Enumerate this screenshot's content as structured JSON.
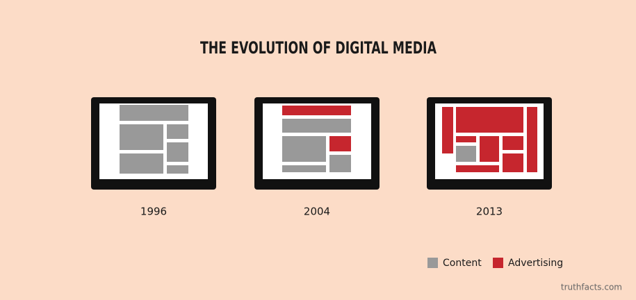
{
  "title": "THE EVOLUTION OF DIGITAL MEDIA",
  "panels": [
    {
      "label": "1996"
    },
    {
      "label": "2004"
    },
    {
      "label": "2013"
    }
  ],
  "legend": [
    {
      "label": "Content",
      "color": "#999999"
    },
    {
      "label": "Advertising",
      "color": "#c6262e"
    }
  ],
  "credit": "truthfacts.com"
}
